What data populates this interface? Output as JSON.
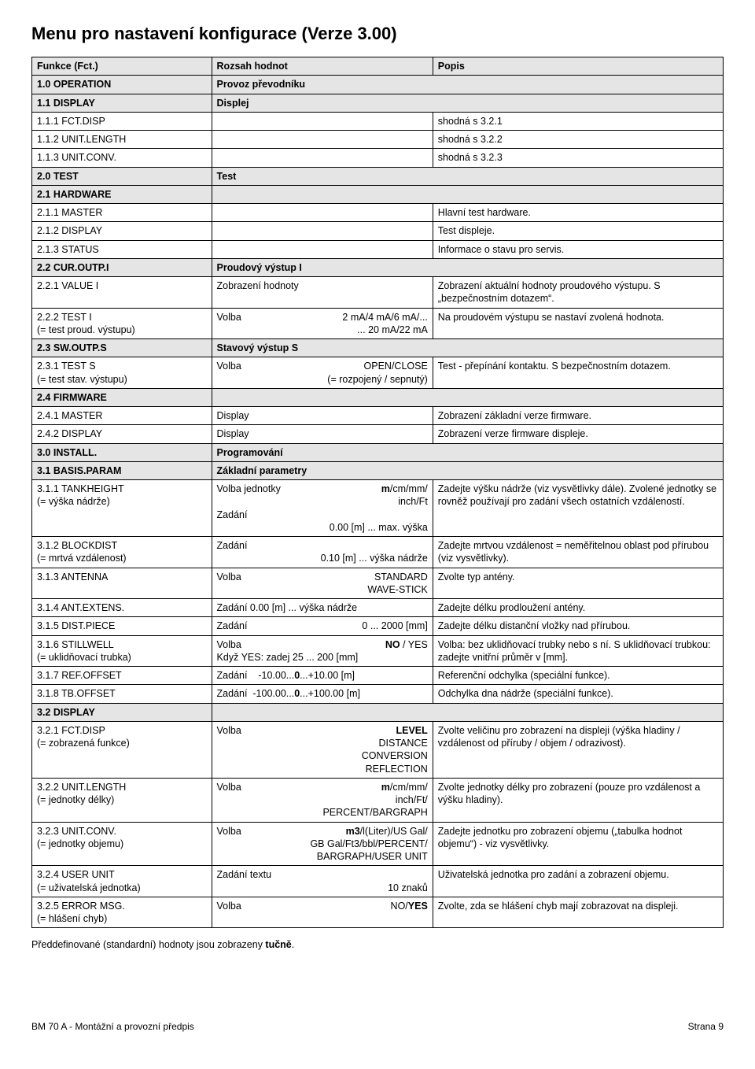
{
  "title": "Menu pro nastavení konfigurace  (Verze 3.00)",
  "headers": {
    "c1": "Funkce (Fct.)",
    "c2": "Rozsah hodnot",
    "c3": "Popis"
  },
  "r": {
    "r10": {
      "a": "1.0  OPERATION",
      "b": "Provoz převodníku"
    },
    "r11": {
      "a": "1.1  DISPLAY",
      "b": "Displej"
    },
    "r111": {
      "a": "1.1.1  FCT.DISP",
      "c": "shodná s 3.2.1"
    },
    "r112": {
      "a": "1.1.2  UNIT.LENGTH",
      "c": "shodná s 3.2.2"
    },
    "r113": {
      "a": "1.1.3  UNIT.CONV.",
      "c": "shodná s 3.2.3"
    },
    "r20": {
      "a": "2.0  TEST",
      "b": "Test"
    },
    "r21": {
      "a": "2.1  HARDWARE"
    },
    "r211": {
      "a": "2.1.1  MASTER",
      "c": "Hlavní test hardware."
    },
    "r212": {
      "a": "2.1.2  DISPLAY",
      "c": "Test displeje."
    },
    "r213": {
      "a": "2.1.3  STATUS",
      "c": "Informace o stavu pro servis."
    },
    "r22": {
      "a": "2.2  CUR.OUTP.I",
      "b": "Proudový výstup I"
    },
    "r221": {
      "a": "2.2.1  VALUE I",
      "b": "Zobrazení hodnoty",
      "c": "Zobrazení aktuální hodnoty proudového výstupu. S „bezpečnostním dotazem“."
    },
    "r222": {
      "a1": "2.2.2  TEST I",
      "a2": "(= test proud. výstupu)",
      "b1a": "Volba",
      "b1b": "2 mA/4 mA/6 mA/...",
      "b2": "... 20 mA/22 mA",
      "c": "Na proudovém výstupu se nastaví zvolená hodnota."
    },
    "r23": {
      "a": "2.3  SW.OUTP.S",
      "b": "Stavový výstup S"
    },
    "r231": {
      "a1": "2.3.1  TEST S",
      "a2": "(= test stav. výstupu)",
      "b1a": "Volba",
      "b1b": "OPEN/CLOSE",
      "b2": "(= rozpojený / sepnutý)",
      "c": "Test - přepínání kontaktu. S bezpečnostním dotazem."
    },
    "r24": {
      "a": "2.4  FIRMWARE"
    },
    "r241": {
      "a": "2.4.1  MASTER",
      "b": "Display",
      "c": "Zobrazení základní verze firmware."
    },
    "r242": {
      "a": "2.4.2  DISPLAY",
      "b": "Display",
      "c": "Zobrazení verze firmware displeje."
    },
    "r30": {
      "a": "3.0  INSTALL.",
      "b": "Programování"
    },
    "r31": {
      "a": "3.1  BASIS.PARAM",
      "b": "Základní parametry"
    },
    "r311": {
      "a1": "3.1.1  TANKHEIGHT",
      "a2": "(= výška nádrže)",
      "b1a": "Volba jednotky",
      "b1b_html": "<b>m</b>/cm/mm/",
      "b2": "inch/Ft",
      "b3": "Zadání",
      "b4": "0.00 [m] ... max. výška",
      "c": "Zadejte výšku nádrže (viz vysvětlivky dále). Zvolené jednotky se rovněž používají pro zadání všech ostatních vzdáleností."
    },
    "r312": {
      "a1": "3.1.2  BLOCKDIST",
      "a2": "(= mrtvá vzdálenost)",
      "b1": "Zadání",
      "b2": "0.10 [m] ... výška nádrže",
      "c": "Zadejte mrtvou vzdálenost = neměřitelnou oblast pod přírubou (viz vysvětlivky)."
    },
    "r313": {
      "a": "3.1.3  ANTENNA",
      "b1a": "Volba",
      "b1b": "STANDARD",
      "b2": "WAVE-STICK",
      "c": "Zvolte typ antény."
    },
    "r314": {
      "a": "3.1.4  ANT.EXTENS.",
      "b": "Zadání  0.00 [m] ... výška nádrže",
      "c": "Zadejte délku prodloužení antény."
    },
    "r315": {
      "a": "3.1.5  DIST.PIECE",
      "b1": "Zadání",
      "b2": "0 ... 2000 [mm]",
      "c": "Zadejte délku distanční vložky nad přírubou."
    },
    "r316": {
      "a1": "3.1.6  STILLWELL",
      "a2": "(= uklidňovací trubka)",
      "b1a": "Volba",
      "b1b_html": "<b>NO</b> / YES",
      "b2": "Když YES: zadej  25 ... 200 [mm]",
      "c": "Volba: bez uklidňovací trubky nebo s ní. S uklidňovací trubkou: zadejte vnitřní průměr v [mm]."
    },
    "r317": {
      "a": "3.1.7  REF.OFFSET",
      "b_html": "Zadání&nbsp;&nbsp;&nbsp;&nbsp;-10.00...<b>0</b>...+10.00 [m]",
      "c": "Referenční odchylka (speciální funkce)."
    },
    "r318": {
      "a": "3.1.8  TB.OFFSET",
      "b_html": "Zadání&nbsp;&nbsp;-100.00...<b>0</b>...+100.00 [m]",
      "c": "Odchylka dna nádrže (speciální funkce)."
    },
    "r32": {
      "a": "3.2  DISPLAY"
    },
    "r321": {
      "a1": "3.2.1  FCT.DISP",
      "a2": "(= zobrazená funkce)",
      "b1a": "Volba",
      "b1b": "LEVEL",
      "b2": "DISTANCE",
      "b3": "CONVERSION",
      "b4": "REFLECTION",
      "c": "Zvolte veličinu pro zobrazení na displeji (výška hladiny / vzdálenost od příruby / objem / odrazivost)."
    },
    "r322": {
      "a1": "3.2.2  UNIT.LENGTH",
      "a2": "(= jednotky délky)",
      "b1a": "Volba",
      "b1b_html": "<b>m</b>/cm/mm/",
      "b2": "inch/Ft/",
      "b3": "PERCENT/BARGRAPH",
      "c": "Zvolte jednotky délky pro zobrazení (pouze pro vzdálenost a výšku hladiny)."
    },
    "r323": {
      "a1": "3.2.3  UNIT.CONV.",
      "a2": "(= jednotky objemu)",
      "b1a": "Volba",
      "b1b_html": "<b>m3</b>/l(Liter)/US Gal/",
      "b2": "GB Gal/Ft3/bbl/PERCENT/",
      "b3": "BARGRAPH/USER UNIT",
      "c": "Zadejte jednotku pro zobrazení objemu („tabulka hodnot objemu“) - viz vysvětlivky."
    },
    "r324": {
      "a1": "3.2.4  USER UNIT",
      "a2": "(= uživatelská jednotka)",
      "b1": "Zadání textu",
      "b2": "10 znaků",
      "c": "Uživatelská jednotka pro zadání a zobrazení objemu."
    },
    "r325": {
      "a1": "3.2.5  ERROR MSG.",
      "a2": "(= hlášení chyb)",
      "b1a": "Volba",
      "b1b_html": "NO/<b>YES</b>",
      "c": "Zvolte, zda se hlášení chyb mají zobrazovat na displeji."
    }
  },
  "footnote_html": "Předdefinované (standardní) hodnoty jsou zobrazeny <b>tučně</b>.",
  "footer": {
    "left": "BM 70 A - Montážní a provozní předpis",
    "right": "Strana 9"
  }
}
